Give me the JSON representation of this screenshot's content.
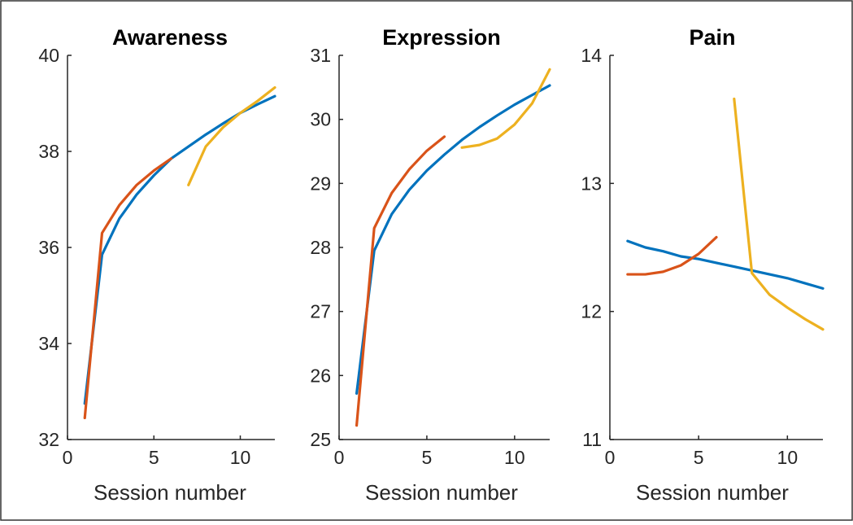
{
  "colors": {
    "blue": "#0072BD",
    "orange": "#D95319",
    "yellow": "#EDB120"
  },
  "chart_data": [
    {
      "type": "line",
      "title": "Awareness",
      "xlabel": "Session number",
      "ylabel": "",
      "xlim": [
        0,
        12
      ],
      "ylim": [
        32,
        40
      ],
      "xticks": [
        0,
        5,
        10
      ],
      "yticks": [
        32,
        34,
        36,
        38,
        40
      ],
      "grid": false,
      "series": [
        {
          "color": "blue",
          "x": [
            1,
            2,
            3,
            4,
            5,
            6,
            7,
            8,
            9,
            10,
            11,
            12
          ],
          "y": [
            32.75,
            35.85,
            36.6,
            37.1,
            37.5,
            37.85,
            38.1,
            38.35,
            38.58,
            38.8,
            38.98,
            39.15
          ]
        },
        {
          "color": "orange",
          "x": [
            1,
            2,
            3,
            4,
            5,
            6
          ],
          "y": [
            32.45,
            36.3,
            36.88,
            37.3,
            37.6,
            37.85
          ]
        },
        {
          "color": "yellow",
          "x": [
            7,
            8,
            9,
            10,
            11,
            12
          ],
          "y": [
            37.3,
            38.1,
            38.5,
            38.8,
            39.05,
            39.33
          ]
        }
      ]
    },
    {
      "type": "line",
      "title": "Expression",
      "xlabel": "Session number",
      "ylabel": "",
      "xlim": [
        0,
        12
      ],
      "ylim": [
        25,
        31
      ],
      "xticks": [
        0,
        5,
        10
      ],
      "yticks": [
        25,
        26,
        27,
        28,
        29,
        30,
        31
      ],
      "grid": false,
      "series": [
        {
          "color": "blue",
          "x": [
            1,
            2,
            3,
            4,
            5,
            6,
            7,
            8,
            9,
            10,
            11,
            12
          ],
          "y": [
            25.72,
            27.95,
            28.52,
            28.9,
            29.2,
            29.45,
            29.68,
            29.88,
            30.06,
            30.23,
            30.38,
            30.53
          ]
        },
        {
          "color": "orange",
          "x": [
            1,
            2,
            3,
            4,
            5,
            6
          ],
          "y": [
            25.22,
            28.3,
            28.85,
            29.22,
            29.51,
            29.73
          ]
        },
        {
          "color": "yellow",
          "x": [
            7,
            8,
            9,
            10,
            11,
            12
          ],
          "y": [
            29.56,
            29.6,
            29.7,
            29.92,
            30.25,
            30.78
          ]
        }
      ]
    },
    {
      "type": "line",
      "title": "Pain",
      "xlabel": "Session number",
      "ylabel": "",
      "xlim": [
        0,
        12
      ],
      "ylim": [
        11,
        14
      ],
      "xticks": [
        0,
        5,
        10
      ],
      "yticks": [
        11,
        12,
        13,
        14
      ],
      "grid": false,
      "series": [
        {
          "color": "blue",
          "x": [
            1,
            2,
            3,
            4,
            5,
            6,
            7,
            8,
            9,
            10,
            11,
            12
          ],
          "y": [
            12.55,
            12.5,
            12.47,
            12.43,
            12.41,
            12.38,
            12.35,
            12.32,
            12.29,
            12.26,
            12.22,
            12.18
          ]
        },
        {
          "color": "orange",
          "x": [
            1,
            2,
            3,
            4,
            5,
            6
          ],
          "y": [
            12.29,
            12.29,
            12.31,
            12.36,
            12.45,
            12.58
          ]
        },
        {
          "color": "yellow",
          "x": [
            7,
            8,
            9,
            10,
            11,
            12
          ],
          "y": [
            13.66,
            12.3,
            12.13,
            12.03,
            11.94,
            11.86
          ]
        }
      ]
    }
  ]
}
